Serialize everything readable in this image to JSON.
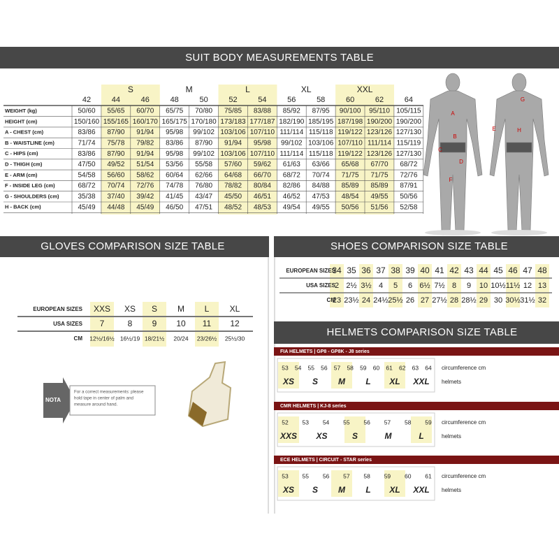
{
  "suit": {
    "title": "SUIT BODY MEASUREMENTS TABLE",
    "groups": [
      "S",
      "M",
      "L",
      "XL",
      "XXL"
    ],
    "sizes": [
      "42",
      "44",
      "46",
      "48",
      "50",
      "52",
      "54",
      "56",
      "58",
      "60",
      "62",
      "64"
    ],
    "rows": [
      {
        "label": "WEIGHT (kg)",
        "values": [
          "50/60",
          "55/65",
          "60/70",
          "65/75",
          "70/80",
          "75/85",
          "83/88",
          "85/92",
          "87/95",
          "90/100",
          "95/110",
          "105/115"
        ]
      },
      {
        "label": "HEIGHT (cm)",
        "values": [
          "150/160",
          "155/165",
          "160/170",
          "165/175",
          "170/180",
          "173/183",
          "177/187",
          "182/190",
          "185/195",
          "187/198",
          "190/200",
          "190/200"
        ]
      },
      {
        "label": "A - CHEST (cm)",
        "values": [
          "83/86",
          "87/90",
          "91/94",
          "95/98",
          "99/102",
          "103/106",
          "107/110",
          "111/114",
          "115/118",
          "119/122",
          "123/126",
          "127/130"
        ]
      },
      {
        "label": "B - WAISTLINE (cm)",
        "values": [
          "71/74",
          "75/78",
          "79/82",
          "83/86",
          "87/90",
          "91/94",
          "95/98",
          "99/102",
          "103/106",
          "107/110",
          "111/114",
          "115/119"
        ]
      },
      {
        "label": "C - HIPS (cm)",
        "values": [
          "83/86",
          "87/90",
          "91/94",
          "95/98",
          "99/102",
          "103/106",
          "107/110",
          "111/114",
          "115/118",
          "119/122",
          "123/126",
          "127/130"
        ]
      },
      {
        "label": "D - THIGH (cm)",
        "values": [
          "47/50",
          "49/52",
          "51/54",
          "53/56",
          "55/58",
          "57/60",
          "59/62",
          "61/63",
          "63/66",
          "65/68",
          "67/70",
          "68/72"
        ]
      },
      {
        "label": "E - ARM (cm)",
        "values": [
          "54/58",
          "56/60",
          "58/62",
          "60/64",
          "62/66",
          "64/68",
          "66/70",
          "68/72",
          "70/74",
          "71/75",
          "71/75",
          "72/76"
        ]
      },
      {
        "label": "F - INSIDE LEG (cm)",
        "values": [
          "68/72",
          "70/74",
          "72/76",
          "74/78",
          "76/80",
          "78/82",
          "80/84",
          "82/86",
          "84/88",
          "85/89",
          "85/89",
          "87/91"
        ]
      },
      {
        "label": "G - SHOULDERS (cm)",
        "values": [
          "35/38",
          "37/40",
          "39/42",
          "41/45",
          "43/47",
          "45/50",
          "46/51",
          "46/52",
          "47/53",
          "48/54",
          "49/55",
          "50/56"
        ]
      },
      {
        "label": "H - BACK (cm)",
        "values": [
          "45/49",
          "44/48",
          "45/49",
          "46/50",
          "47/51",
          "48/52",
          "48/53",
          "49/54",
          "49/55",
          "50/56",
          "51/56",
          "52/58"
        ]
      }
    ],
    "figure_labels": [
      "A",
      "B",
      "C",
      "D",
      "E",
      "F",
      "G",
      "H"
    ]
  },
  "gloves": {
    "title": "GLOVES COMPARISON SIZE TABLE",
    "rows": [
      {
        "label": "EUROPEAN SIZES",
        "values": [
          "XXS",
          "XS",
          "S",
          "M",
          "L",
          "XL"
        ]
      },
      {
        "label": "USA SIZES",
        "values": [
          "7",
          "8",
          "9",
          "10",
          "11",
          "12"
        ]
      },
      {
        "label": "CM",
        "values": [
          "12½/16½",
          "16½/19",
          "18/21½",
          "20/24",
          "23/26½",
          "25½/30"
        ]
      }
    ],
    "nota": "NOTA",
    "note": [
      "For a correct measurements: please",
      "hold tape in center of palm and",
      "measure around hand."
    ]
  },
  "shoes": {
    "title": "SHOES COMPARISON SIZE TABLE",
    "rows": [
      {
        "label": "EUROPEAN SIZES",
        "values": [
          "34",
          "35",
          "36",
          "37",
          "38",
          "39",
          "40",
          "41",
          "42",
          "43",
          "44",
          "45",
          "46",
          "47",
          "48"
        ]
      },
      {
        "label": "USA SIZES",
        "values": [
          "2",
          "2½",
          "3½",
          "4",
          "5",
          "6",
          "6½",
          "7½",
          "8",
          "9",
          "10",
          "10½",
          "11½",
          "12",
          "13"
        ]
      },
      {
        "label": "CM",
        "values": [
          "23",
          "23½",
          "24",
          "24½",
          "25½",
          "26",
          "27",
          "27½",
          "28",
          "28½",
          "29",
          "30",
          "30½",
          "31½",
          "32"
        ]
      }
    ]
  },
  "helmets": {
    "title": "HELMETS COMPARISON SIZE TABLE",
    "sections": [
      {
        "title": "FIA HELMETS | GP8 - GP8K - J8 series",
        "circumference": [
          "53",
          "54",
          "55",
          "56",
          "57",
          "58",
          "59",
          "60",
          "61",
          "62",
          "63",
          "64"
        ],
        "sizes": [
          "XS",
          "S",
          "M",
          "L",
          "XL",
          "XXL"
        ],
        "circumference_label": "circumference cm",
        "sizes_label": "helmets"
      },
      {
        "title": "CMR HELMETS | KJ-8 series",
        "circumference": [
          "52",
          "53",
          "54",
          "55",
          "56",
          "57",
          "58",
          "59"
        ],
        "sizes": [
          "XXS",
          "XS",
          "S",
          "M",
          "L"
        ],
        "circumference_label": "circumference cm",
        "sizes_label": "helmets"
      },
      {
        "title": "ECE HELMETS | CIRCUIT - STAR series",
        "circumference": [
          "53",
          "55",
          "56",
          "57",
          "58",
          "59",
          "60",
          "61"
        ],
        "sizes": [
          "XS",
          "S",
          "M",
          "L",
          "XL",
          "XXL"
        ],
        "circumference_label": "circumference cm",
        "sizes_label": "helmets"
      }
    ]
  }
}
